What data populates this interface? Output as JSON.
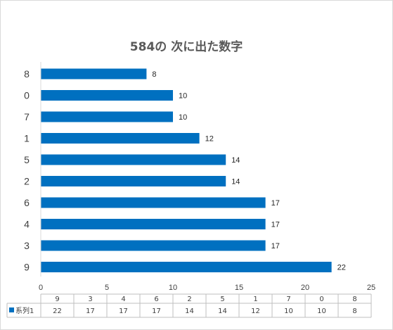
{
  "chart_data": {
    "type": "bar",
    "orientation": "horizontal",
    "title": "584の 次に出た数字",
    "categories": [
      "8",
      "0",
      "7",
      "1",
      "5",
      "2",
      "6",
      "4",
      "3",
      "9"
    ],
    "series": [
      {
        "name": "系列1",
        "values": [
          8,
          10,
          10,
          12,
          14,
          14,
          17,
          17,
          17,
          22
        ],
        "color": "#0070C0"
      }
    ],
    "xlim": [
      0,
      25
    ],
    "x_ticks": [
      0,
      5,
      10,
      15,
      20,
      25
    ],
    "grid": false,
    "legend": "data-table-bottom",
    "data_table": {
      "headers": [
        "9",
        "3",
        "4",
        "6",
        "2",
        "5",
        "1",
        "7",
        "0",
        "8"
      ],
      "series_label": "系列1",
      "values": [
        "22",
        "17",
        "17",
        "17",
        "14",
        "14",
        "12",
        "10",
        "10",
        "8"
      ]
    }
  }
}
